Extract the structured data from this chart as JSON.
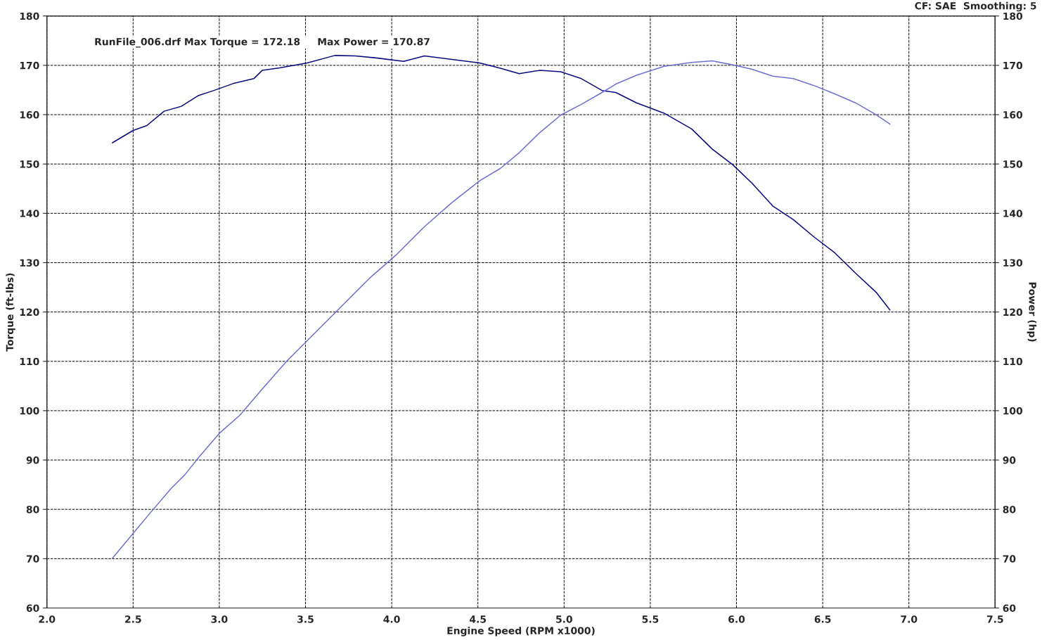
{
  "chart_data": {
    "type": "line",
    "xlabel": "Engine Speed (RPM x1000)",
    "ylabel": "Torque (ft-lbs)",
    "y2label": "Power (hp)",
    "annotations": [
      "RunFile_006.drf Max Torque = 172.18     Max Power = 170.87",
      "CF: SAE  Smoothing: 5"
    ],
    "grid": true,
    "line_style": "solid",
    "marker": "none",
    "xlim": [
      2.0,
      7.5
    ],
    "xticks": [
      {
        "value": 2.0,
        "label": "2.0"
      },
      2.5,
      {
        "value": 3.0,
        "label": "3.0"
      },
      3.5,
      {
        "value": 4.0,
        "label": "4.0"
      },
      4.5,
      {
        "value": 5.0,
        "label": "5.0"
      },
      5.5,
      {
        "value": 6.0,
        "label": "6.0"
      },
      6.5,
      {
        "value": 7.0,
        "label": "7.0"
      },
      7.5
    ],
    "ylim": [
      60,
      180
    ],
    "yticks": [
      60,
      70,
      80,
      90,
      100,
      110,
      120,
      130,
      140,
      150,
      160,
      170,
      180
    ],
    "y2lim": [
      60,
      180
    ],
    "y2ticks": [
      60,
      70,
      80,
      90,
      100,
      110,
      120,
      130,
      140,
      150,
      160,
      170,
      180
    ],
    "series": [
      {
        "color": "#0a0a80",
        "axis": "y",
        "x": [
          2.38,
          2.5,
          2.58,
          2.68,
          2.78,
          2.88,
          2.96,
          3.08,
          3.2,
          3.25,
          3.35,
          3.51,
          3.67,
          3.79,
          3.91,
          4.07,
          4.19,
          4.35,
          4.51,
          4.63,
          4.74,
          4.86,
          4.98,
          5.1,
          5.22,
          5.3,
          5.42,
          5.58,
          5.74,
          5.86,
          5.98,
          6.09,
          6.21,
          6.33,
          6.45,
          6.57,
          6.69,
          6.81,
          6.89
        ],
        "values": [
          154.3,
          156.8,
          157.8,
          160.7,
          161.7,
          163.9,
          164.8,
          166.3,
          167.3,
          169.0,
          169.5,
          170.5,
          172.0,
          171.9,
          171.5,
          170.8,
          171.9,
          171.2,
          170.5,
          169.4,
          168.3,
          169.0,
          168.7,
          167.3,
          164.9,
          164.5,
          162.4,
          160.3,
          157.1,
          153.0,
          149.8,
          146.1,
          141.5,
          138.7,
          135.2,
          132.0,
          127.9,
          124.0,
          120.4
        ]
      },
      {
        "color": "#7070d0",
        "axis": "y2",
        "x": [
          2.38,
          2.5,
          2.6,
          2.72,
          2.8,
          2.88,
          3.0,
          3.12,
          3.24,
          3.39,
          3.55,
          3.71,
          3.87,
          4.03,
          4.19,
          4.35,
          4.51,
          4.63,
          4.74,
          4.86,
          4.98,
          5.1,
          5.22,
          5.3,
          5.42,
          5.58,
          5.74,
          5.86,
          5.98,
          6.09,
          6.21,
          6.33,
          6.45,
          6.57,
          6.69,
          6.81,
          6.89
        ],
        "values": [
          70.1,
          75.1,
          79.3,
          84.2,
          87.0,
          90.5,
          95.4,
          99.1,
          104.0,
          110.0,
          115.6,
          121.2,
          126.8,
          131.7,
          137.3,
          142.2,
          146.6,
          149.1,
          152.3,
          156.4,
          159.9,
          162.1,
          164.5,
          166.2,
          168.0,
          169.8,
          170.6,
          170.9,
          170.1,
          169.2,
          167.8,
          167.3,
          165.9,
          164.2,
          162.4,
          160.0,
          158.1
        ]
      }
    ]
  }
}
